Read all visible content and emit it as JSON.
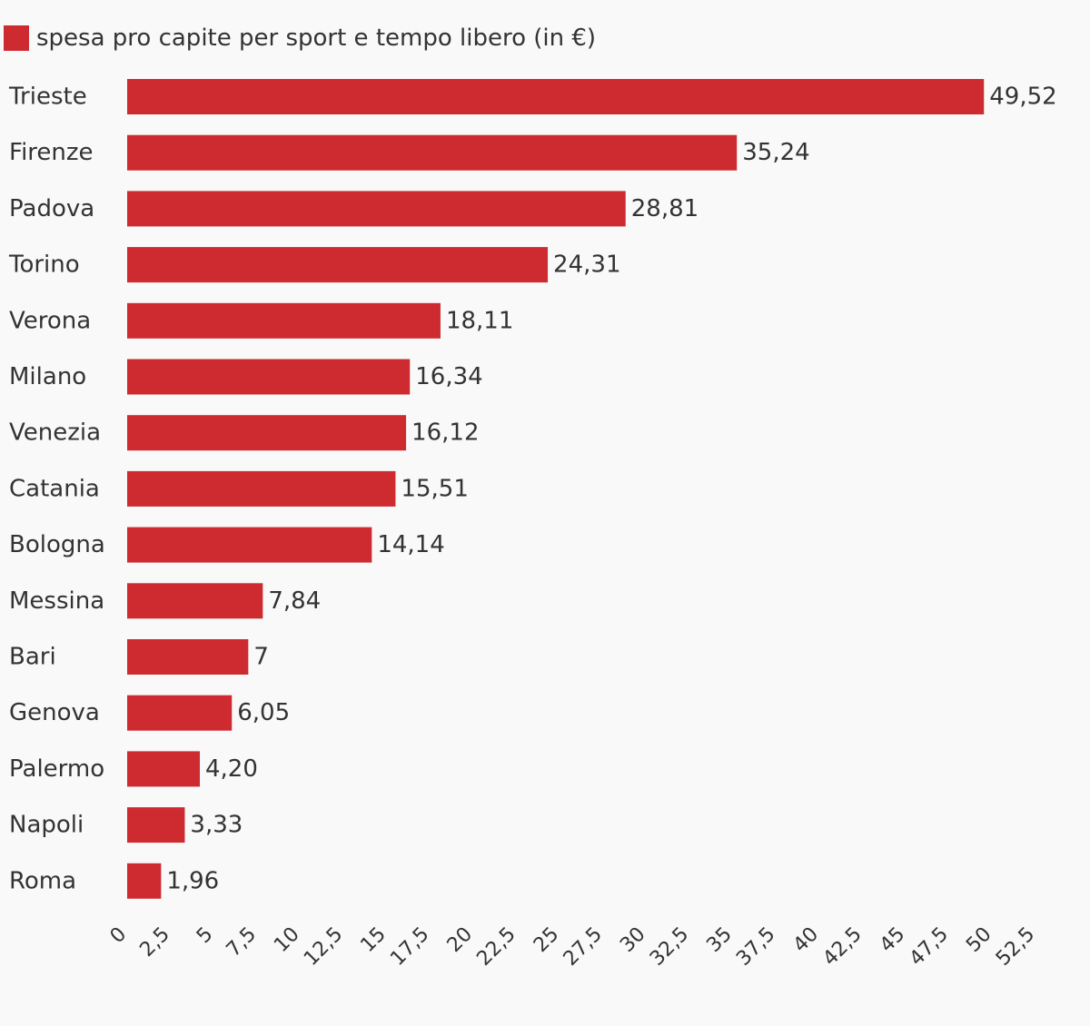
{
  "chart_data": {
    "type": "bar",
    "orientation": "horizontal",
    "legend": {
      "label": "spesa pro capite per sport e tempo libero (in €)",
      "color": "#ce2b31",
      "placement": "top-left"
    },
    "categories": [
      "Trieste",
      "Firenze",
      "Padova",
      "Torino",
      "Verona",
      "Milano",
      "Venezia",
      "Catania",
      "Bologna",
      "Messina",
      "Bari",
      "Genova",
      "Palermo",
      "Napoli",
      "Roma"
    ],
    "values": [
      49.52,
      35.24,
      28.81,
      24.31,
      18.11,
      16.34,
      16.12,
      15.51,
      14.14,
      7.84,
      7,
      6.05,
      4.2,
      3.33,
      1.96
    ],
    "value_labels": [
      "49,52",
      "35,24",
      "28,81",
      "24,31",
      "18,11",
      "16,34",
      "16,12",
      "15,51",
      "14,14",
      "7,84",
      "7",
      "6,05",
      "4,20",
      "3,33",
      "1,96"
    ],
    "xlim": [
      0,
      52.5
    ],
    "x_ticks": [
      0,
      2.5,
      5,
      7.5,
      10,
      12.5,
      15,
      17.5,
      20,
      22.5,
      25,
      27.5,
      30,
      32.5,
      35,
      37.5,
      40,
      42.5,
      45,
      47.5,
      50,
      52.5
    ],
    "x_tick_labels": [
      "0",
      "2,5",
      "5",
      "7,5",
      "10",
      "12,5",
      "15",
      "17,5",
      "20",
      "22,5",
      "25",
      "27,5",
      "30",
      "32,5",
      "35",
      "37,5",
      "40",
      "42,5",
      "45",
      "47,5",
      "50",
      "52,5"
    ],
    "grid": false,
    "bar_color": "#ce2b31"
  }
}
